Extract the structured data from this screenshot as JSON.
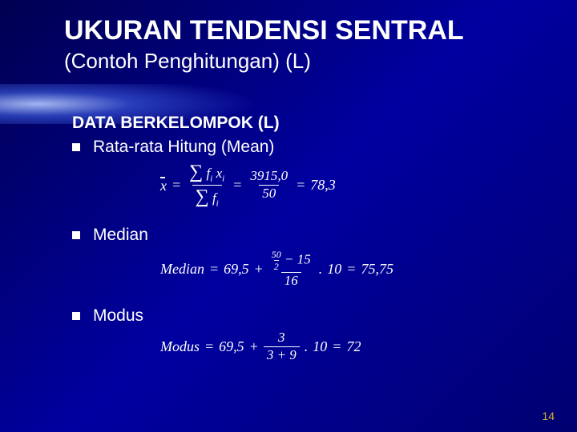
{
  "title": "UKURAN TENDENSI SENTRAL",
  "subtitle": "(Contoh Penghitungan) (L)",
  "section_header": "DATA BERKELOMPOK (L)",
  "bullets": {
    "mean": "Rata-rata Hitung (Mean)",
    "median": "Median",
    "modus": "Modus"
  },
  "formulas": {
    "mean": {
      "sum_fx": "3915,0",
      "sum_f": "50",
      "result": "78,3"
    },
    "median": {
      "label": "Median",
      "lower": "69,5",
      "n": "50",
      "half_div": "2",
      "cumfreq": "15",
      "class_freq": "16",
      "width": "10",
      "result": "75,75"
    },
    "modus": {
      "label": "Modus",
      "lower": "69,5",
      "d1": "3",
      "d2": "9",
      "width": "10",
      "result": "72"
    }
  },
  "page_number": "14",
  "colors": {
    "text": "#ffffff",
    "page_num": "#d4b030",
    "bg_start": "#000050",
    "bg_end": "#000070"
  }
}
